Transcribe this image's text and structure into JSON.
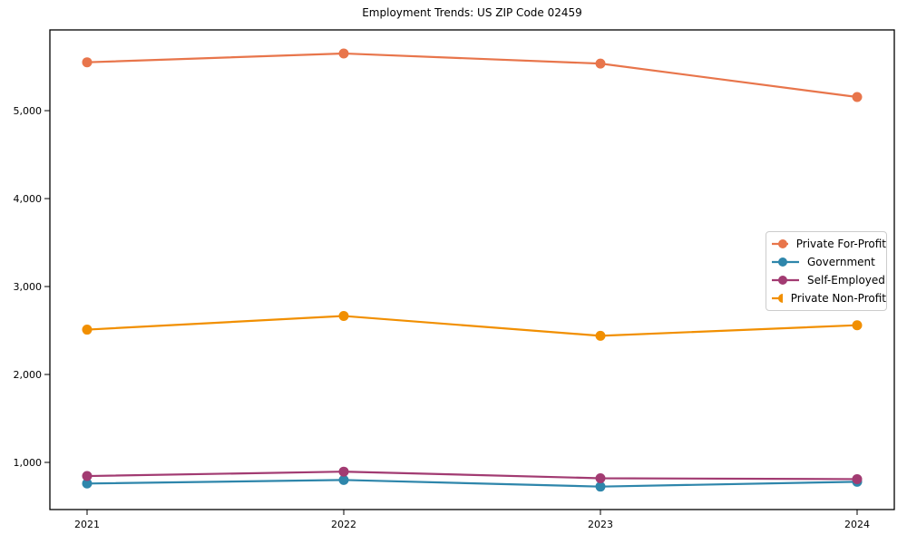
{
  "chart_data": {
    "type": "line",
    "title": "Employment Trends: US ZIP Code 02459",
    "xlabel": "",
    "ylabel": "",
    "grid": false,
    "legend_position": "center right",
    "x": [
      "2021",
      "2022",
      "2023",
      "2024"
    ],
    "series": [
      {
        "name": "Private For-Profit",
        "color": "#E8754B",
        "values": [
          5550,
          5650,
          5535,
          5155
        ]
      },
      {
        "name": "Government",
        "color": "#2E86AB",
        "values": [
          760,
          800,
          725,
          780
        ]
      },
      {
        "name": "Self-Employed",
        "color": "#A23B72",
        "values": [
          845,
          895,
          820,
          810
        ]
      },
      {
        "name": "Private Non-Profit",
        "color": "#F18F01",
        "values": [
          2510,
          2665,
          2440,
          2560
        ]
      }
    ],
    "yticks": [
      {
        "value": 1000,
        "label": "1,000"
      },
      {
        "value": 2000,
        "label": "2,000"
      },
      {
        "value": 3000,
        "label": "3,000"
      },
      {
        "value": 4000,
        "label": "4,000"
      },
      {
        "value": 5000,
        "label": "5,000"
      }
    ],
    "ylim": [
      464,
      5918
    ],
    "axis_color": "#000000"
  }
}
